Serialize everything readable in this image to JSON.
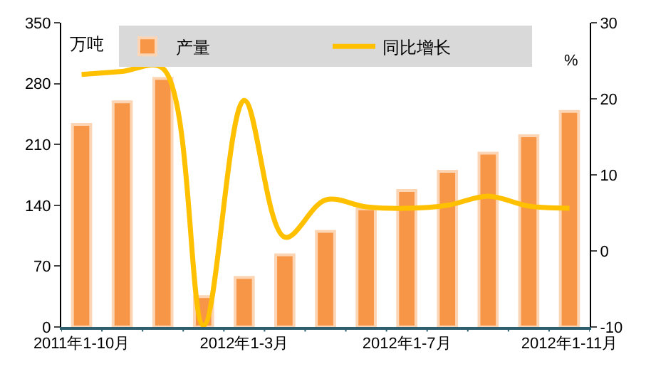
{
  "chart_data": {
    "type": "bar",
    "categories": [
      "2011年1-10月",
      null,
      null,
      null,
      "2012年1-3月",
      null,
      null,
      null,
      "2012年1-7月",
      null,
      null,
      null,
      "2012年1-11月"
    ],
    "series": [
      {
        "name": "产量",
        "color": "#f79646",
        "values": [
          233,
          259,
          286,
          35,
          57,
          83,
          110,
          136,
          157,
          179,
          200,
          220,
          248
        ]
      },
      {
        "name": "同比增长",
        "type": "line",
        "axis": "y2",
        "color": "#ffc000",
        "values": [
          23.2,
          23.6,
          24.0,
          -9.8,
          19.8,
          1.8,
          6.7,
          5.8,
          5.6,
          6.0,
          7.2,
          5.9,
          5.6
        ]
      }
    ],
    "ylabel": "万吨",
    "y2label": "%",
    "ylim": [
      0,
      350
    ],
    "yticks": [
      0,
      70,
      140,
      210,
      280,
      350
    ],
    "y2lim": [
      -10,
      30
    ],
    "y2ticks": [
      -10,
      0,
      10,
      20,
      30
    ],
    "legend": "top",
    "grid": false
  }
}
